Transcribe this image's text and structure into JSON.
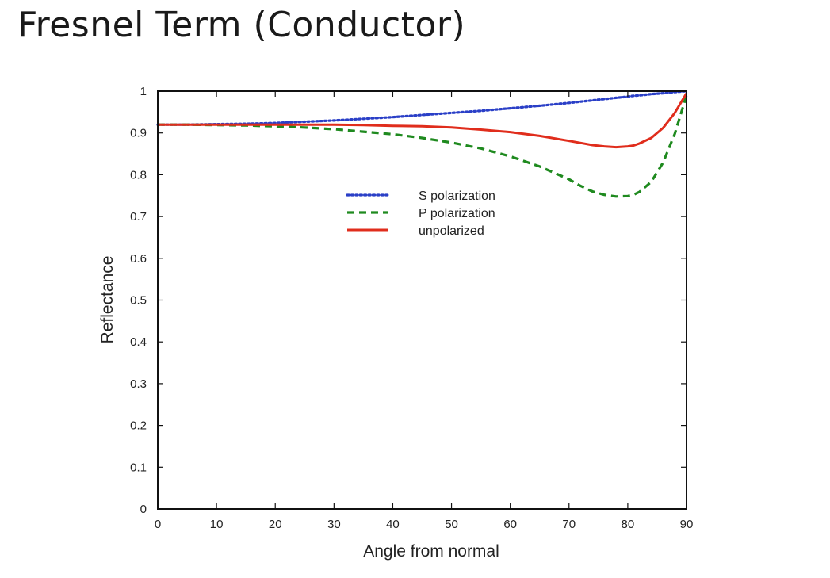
{
  "slide": {
    "title": "Fresnel Term (Conductor)"
  },
  "chart_data": {
    "type": "line",
    "title": "",
    "xlabel": "Angle from normal",
    "ylabel": "Reflectance",
    "xlim": [
      0,
      90
    ],
    "ylim": [
      0,
      1
    ],
    "xticks": [
      "0",
      "10",
      "20",
      "30",
      "40",
      "50",
      "60",
      "70",
      "80",
      "90"
    ],
    "yticks": [
      "0",
      "0.1",
      "0.2",
      "0.3",
      "0.4",
      "0.5",
      "0.6",
      "0.7",
      "0.8",
      "0.9",
      "1"
    ],
    "x": [
      0,
      5,
      10,
      15,
      20,
      25,
      30,
      35,
      40,
      45,
      50,
      55,
      60,
      65,
      70,
      72,
      74,
      76,
      78,
      80,
      81,
      82,
      84,
      86,
      88,
      90
    ],
    "series": [
      {
        "name": "S polarization",
        "style": "dotted",
        "color": "#2a3fc7",
        "values": [
          0.92,
          0.92,
          0.921,
          0.922,
          0.924,
          0.927,
          0.93,
          0.934,
          0.938,
          0.943,
          0.948,
          0.953,
          0.959,
          0.965,
          0.972,
          0.975,
          0.978,
          0.981,
          0.984,
          0.987,
          0.989,
          0.99,
          0.993,
          0.995,
          0.998,
          1.0
        ]
      },
      {
        "name": "P polarization",
        "style": "dashed",
        "color": "#1f8a1f",
        "values": [
          0.92,
          0.92,
          0.919,
          0.918,
          0.916,
          0.913,
          0.909,
          0.903,
          0.897,
          0.888,
          0.877,
          0.863,
          0.844,
          0.82,
          0.789,
          0.773,
          0.76,
          0.752,
          0.748,
          0.749,
          0.752,
          0.759,
          0.783,
          0.829,
          0.898,
          0.99
        ]
      },
      {
        "name": "unpolarized",
        "style": "solid",
        "color": "#e02d1c",
        "values": [
          0.92,
          0.92,
          0.92,
          0.92,
          0.92,
          0.92,
          0.92,
          0.919,
          0.917,
          0.916,
          0.913,
          0.908,
          0.902,
          0.893,
          0.881,
          0.876,
          0.871,
          0.868,
          0.866,
          0.868,
          0.87,
          0.875,
          0.888,
          0.912,
          0.948,
          0.995
        ]
      }
    ],
    "legend_position": "upper-center",
    "grid": false
  }
}
